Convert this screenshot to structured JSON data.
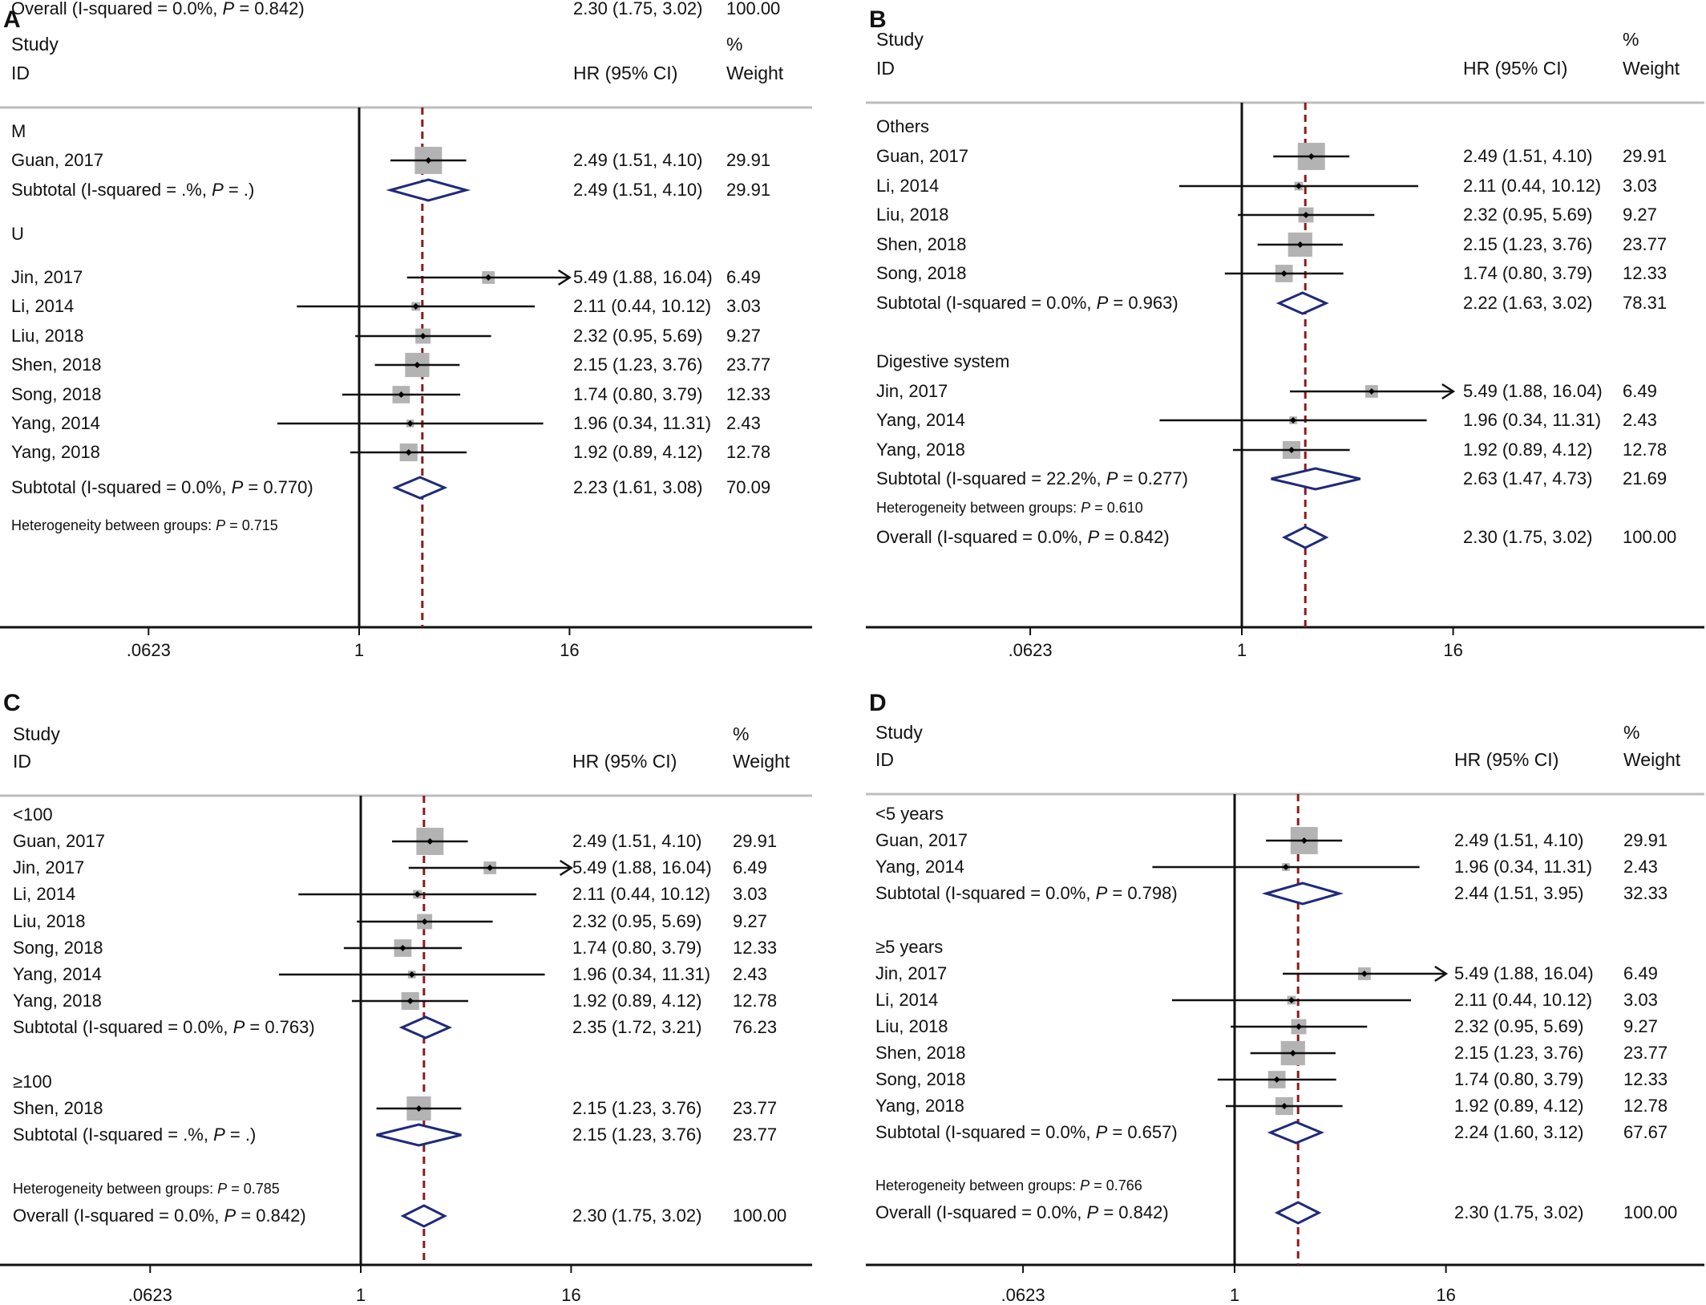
{
  "chart_data": [
    {
      "type": "forest",
      "panel_label": "A",
      "header": {
        "study": "Study",
        "id": "ID",
        "hr": "HR (95% CI)",
        "pct": "%",
        "weight": "Weight"
      },
      "x_scale": "log",
      "ticks": [
        {
          "value": 0.0623,
          "label": ".0623"
        },
        {
          "value": 1,
          "label": "1"
        },
        {
          "value": 16,
          "label": "16"
        }
      ],
      "xlim": [
        0.0623,
        16
      ],
      "overall_line": 2.3,
      "rows": [
        {
          "kind": "group",
          "label": "M"
        },
        {
          "kind": "study",
          "label": "Guan, 2017",
          "hr": 2.49,
          "lo": 1.51,
          "hi": 4.1,
          "ci": "2.49 (1.51, 4.10)",
          "weight": "29.91"
        },
        {
          "kind": "subtotal",
          "label": "Subtotal  (I-squared = .%, ",
          "p_label": "P",
          "p_value": " = .)",
          "hr": 2.49,
          "lo": 1.51,
          "hi": 4.1,
          "ci": "2.49 (1.51, 4.10)",
          "weight": "29.91"
        },
        {
          "kind": "group",
          "label": "U"
        },
        {
          "kind": "study",
          "label": "Jin, 2017",
          "hr": 5.49,
          "lo": 1.88,
          "hi": 16.04,
          "arrow": true,
          "ci": "5.49 (1.88, 16.04)",
          "weight": "6.49"
        },
        {
          "kind": "study",
          "label": "Li, 2014",
          "hr": 2.11,
          "lo": 0.44,
          "hi": 10.12,
          "ci": "2.11 (0.44, 10.12)",
          "weight": "3.03"
        },
        {
          "kind": "study",
          "label": "Liu, 2018",
          "hr": 2.32,
          "lo": 0.95,
          "hi": 5.69,
          "ci": "2.32 (0.95, 5.69)",
          "weight": "9.27"
        },
        {
          "kind": "study",
          "label": "Shen, 2018",
          "hr": 2.15,
          "lo": 1.23,
          "hi": 3.76,
          "ci": "2.15 (1.23, 3.76)",
          "weight": "23.77"
        },
        {
          "kind": "study",
          "label": "Song, 2018",
          "hr": 1.74,
          "lo": 0.8,
          "hi": 3.79,
          "ci": "1.74 (0.80, 3.79)",
          "weight": "12.33"
        },
        {
          "kind": "study",
          "label": "Yang, 2014",
          "hr": 1.96,
          "lo": 0.34,
          "hi": 11.31,
          "ci": "1.96 (0.34, 11.31)",
          "weight": "2.43"
        },
        {
          "kind": "study",
          "label": "Yang, 2018",
          "hr": 1.92,
          "lo": 0.89,
          "hi": 4.12,
          "ci": "1.92 (0.89, 4.12)",
          "weight": "12.78"
        },
        {
          "kind": "subtotal",
          "label": "Subtotal  (I-squared = 0.0%, ",
          "p_label": "P",
          "p_value": " = 0.770)",
          "hr": 2.23,
          "lo": 1.61,
          "hi": 3.08,
          "ci": "2.23 (1.61, 3.08)",
          "weight": "70.09"
        },
        {
          "kind": "het",
          "label": "Heterogeneity between groups: ",
          "p_label": "P",
          "p_value": " = 0.715"
        },
        {
          "kind": "overall",
          "label": "Overall  (I-squared = 0.0%, ",
          "p_label": "P",
          "p_value": " = 0.842)",
          "hr": 2.3,
          "lo": 1.75,
          "hi": 3.02,
          "ci": "2.30 (1.75, 3.02)",
          "weight": "100.00"
        }
      ]
    },
    {
      "type": "forest",
      "panel_label": "B",
      "header": {
        "study": "Study",
        "id": "ID",
        "hr": "HR (95% CI)",
        "pct": "%",
        "weight": "Weight"
      },
      "x_scale": "log",
      "ticks": [
        {
          "value": 0.0623,
          "label": ".0623"
        },
        {
          "value": 1,
          "label": "1"
        },
        {
          "value": 16,
          "label": "16"
        }
      ],
      "xlim": [
        0.0623,
        16
      ],
      "overall_line": 2.3,
      "rows": [
        {
          "kind": "group",
          "label": "Others"
        },
        {
          "kind": "study",
          "label": "Guan, 2017",
          "hr": 2.49,
          "lo": 1.51,
          "hi": 4.1,
          "ci": "2.49 (1.51, 4.10)",
          "weight": "29.91"
        },
        {
          "kind": "study",
          "label": "Li, 2014",
          "hr": 2.11,
          "lo": 0.44,
          "hi": 10.12,
          "ci": "2.11 (0.44, 10.12)",
          "weight": "3.03"
        },
        {
          "kind": "study",
          "label": "Liu, 2018",
          "hr": 2.32,
          "lo": 0.95,
          "hi": 5.69,
          "ci": "2.32 (0.95, 5.69)",
          "weight": "9.27"
        },
        {
          "kind": "study",
          "label": "Shen, 2018",
          "hr": 2.15,
          "lo": 1.23,
          "hi": 3.76,
          "ci": "2.15 (1.23, 3.76)",
          "weight": "23.77"
        },
        {
          "kind": "study",
          "label": "Song, 2018",
          "hr": 1.74,
          "lo": 0.8,
          "hi": 3.79,
          "ci": "1.74 (0.80, 3.79)",
          "weight": "12.33"
        },
        {
          "kind": "subtotal",
          "label": "Subtotal  (I-squared = 0.0%, ",
          "p_label": "P",
          "p_value": " = 0.963)",
          "hr": 2.22,
          "lo": 1.63,
          "hi": 3.02,
          "ci": "2.22 (1.63, 3.02)",
          "weight": "78.31"
        },
        {
          "kind": "group",
          "label": "Digestive system"
        },
        {
          "kind": "study",
          "label": "Jin, 2017",
          "hr": 5.49,
          "lo": 1.88,
          "hi": 16.04,
          "arrow": true,
          "ci": "5.49 (1.88, 16.04)",
          "weight": "6.49"
        },
        {
          "kind": "study",
          "label": "Yang, 2014",
          "hr": 1.96,
          "lo": 0.34,
          "hi": 11.31,
          "ci": "1.96 (0.34, 11.31)",
          "weight": "2.43"
        },
        {
          "kind": "study",
          "label": "Yang, 2018",
          "hr": 1.92,
          "lo": 0.89,
          "hi": 4.12,
          "ci": "1.92 (0.89, 4.12)",
          "weight": "12.78"
        },
        {
          "kind": "subtotal",
          "label": "Subtotal  (I-squared = 22.2%, ",
          "p_label": "P",
          "p_value": " = 0.277)",
          "hr": 2.63,
          "lo": 1.47,
          "hi": 4.73,
          "ci": "2.63 (1.47, 4.73)",
          "weight": "21.69"
        },
        {
          "kind": "het",
          "label": "Heterogeneity between groups: ",
          "p_label": "P",
          "p_value": " = 0.610"
        },
        {
          "kind": "overall",
          "label": "Overall  (I-squared = 0.0%, ",
          "p_label": "P",
          "p_value": " = 0.842)",
          "hr": 2.3,
          "lo": 1.75,
          "hi": 3.02,
          "ci": "2.30 (1.75, 3.02)",
          "weight": "100.00"
        }
      ]
    },
    {
      "type": "forest",
      "panel_label": "C",
      "header": {
        "study": "Study",
        "id": "ID",
        "hr": "HR (95% CI)",
        "pct": "%",
        "weight": "Weight"
      },
      "x_scale": "log",
      "ticks": [
        {
          "value": 0.0623,
          "label": ".0623"
        },
        {
          "value": 1,
          "label": "1"
        },
        {
          "value": 16,
          "label": "16"
        }
      ],
      "xlim": [
        0.0623,
        16
      ],
      "overall_line": 2.3,
      "rows": [
        {
          "kind": "group",
          "label": "<100"
        },
        {
          "kind": "study",
          "label": "Guan, 2017",
          "hr": 2.49,
          "lo": 1.51,
          "hi": 4.1,
          "ci": "2.49 (1.51, 4.10)",
          "weight": "29.91"
        },
        {
          "kind": "study",
          "label": "Jin, 2017",
          "hr": 5.49,
          "lo": 1.88,
          "hi": 16.04,
          "arrow": true,
          "ci": "5.49 (1.88, 16.04)",
          "weight": "6.49"
        },
        {
          "kind": "study",
          "label": "Li, 2014",
          "hr": 2.11,
          "lo": 0.44,
          "hi": 10.12,
          "ci": "2.11 (0.44, 10.12)",
          "weight": "3.03"
        },
        {
          "kind": "study",
          "label": "Liu, 2018",
          "hr": 2.32,
          "lo": 0.95,
          "hi": 5.69,
          "ci": "2.32 (0.95, 5.69)",
          "weight": "9.27"
        },
        {
          "kind": "study",
          "label": "Song, 2018",
          "hr": 1.74,
          "lo": 0.8,
          "hi": 3.79,
          "ci": "1.74 (0.80, 3.79)",
          "weight": "12.33"
        },
        {
          "kind": "study",
          "label": "Yang, 2014",
          "hr": 1.96,
          "lo": 0.34,
          "hi": 11.31,
          "ci": "1.96 (0.34, 11.31)",
          "weight": "2.43"
        },
        {
          "kind": "study",
          "label": "Yang, 2018",
          "hr": 1.92,
          "lo": 0.89,
          "hi": 4.12,
          "ci": "1.92 (0.89, 4.12)",
          "weight": "12.78"
        },
        {
          "kind": "subtotal",
          "label": "Subtotal  (I-squared = 0.0%, ",
          "p_label": "P",
          "p_value": " = 0.763)",
          "hr": 2.35,
          "lo": 1.72,
          "hi": 3.21,
          "ci": "2.35 (1.72, 3.21)",
          "weight": "76.23"
        },
        {
          "kind": "group",
          "label": "≥100"
        },
        {
          "kind": "study",
          "label": "Shen, 2018",
          "hr": 2.15,
          "lo": 1.23,
          "hi": 3.76,
          "ci": "2.15 (1.23, 3.76)",
          "weight": "23.77"
        },
        {
          "kind": "subtotal",
          "label": "Subtotal  (I-squared = .%, ",
          "p_label": "P",
          "p_value": " = .)",
          "hr": 2.15,
          "lo": 1.23,
          "hi": 3.76,
          "ci": "2.15 (1.23, 3.76)",
          "weight": "23.77"
        },
        {
          "kind": "het",
          "label": "Heterogeneity between groups: ",
          "p_label": "P",
          "p_value": " = 0.785"
        },
        {
          "kind": "overall",
          "label": "Overall  (I-squared = 0.0%, ",
          "p_label": "P",
          "p_value": " = 0.842)",
          "hr": 2.3,
          "lo": 1.75,
          "hi": 3.02,
          "ci": "2.30 (1.75, 3.02)",
          "weight": "100.00"
        }
      ]
    },
    {
      "type": "forest",
      "panel_label": "D",
      "header": {
        "study": "Study",
        "id": "ID",
        "hr": "HR (95% CI)",
        "pct": "%",
        "weight": "Weight"
      },
      "x_scale": "log",
      "ticks": [
        {
          "value": 0.0623,
          "label": ".0623"
        },
        {
          "value": 1,
          "label": "1"
        },
        {
          "value": 16,
          "label": "16"
        }
      ],
      "xlim": [
        0.0623,
        16
      ],
      "overall_line": 2.3,
      "rows": [
        {
          "kind": "group",
          "label": "<5 years"
        },
        {
          "kind": "study",
          "label": "Guan, 2017",
          "hr": 2.49,
          "lo": 1.51,
          "hi": 4.1,
          "ci": "2.49 (1.51, 4.10)",
          "weight": "29.91"
        },
        {
          "kind": "study",
          "label": "Yang, 2014",
          "hr": 1.96,
          "lo": 0.34,
          "hi": 11.31,
          "ci": "1.96 (0.34, 11.31)",
          "weight": "2.43"
        },
        {
          "kind": "subtotal",
          "label": "Subtotal  (I-squared = 0.0%, ",
          "p_label": "P",
          "p_value": " = 0.798)",
          "hr": 2.44,
          "lo": 1.51,
          "hi": 3.95,
          "ci": "2.44 (1.51, 3.95)",
          "weight": "32.33"
        },
        {
          "kind": "group",
          "label": "≥5 years"
        },
        {
          "kind": "study",
          "label": "Jin, 2017",
          "hr": 5.49,
          "lo": 1.88,
          "hi": 16.04,
          "arrow": true,
          "ci": "5.49 (1.88, 16.04)",
          "weight": "6.49"
        },
        {
          "kind": "study",
          "label": "Li, 2014",
          "hr": 2.11,
          "lo": 0.44,
          "hi": 10.12,
          "ci": "2.11 (0.44, 10.12)",
          "weight": "3.03"
        },
        {
          "kind": "study",
          "label": "Liu, 2018",
          "hr": 2.32,
          "lo": 0.95,
          "hi": 5.69,
          "ci": "2.32 (0.95, 5.69)",
          "weight": "9.27"
        },
        {
          "kind": "study",
          "label": "Shen, 2018",
          "hr": 2.15,
          "lo": 1.23,
          "hi": 3.76,
          "ci": "2.15 (1.23, 3.76)",
          "weight": "23.77"
        },
        {
          "kind": "study",
          "label": "Song, 2018",
          "hr": 1.74,
          "lo": 0.8,
          "hi": 3.79,
          "ci": "1.74 (0.80, 3.79)",
          "weight": "12.33"
        },
        {
          "kind": "study",
          "label": "Yang, 2018",
          "hr": 1.92,
          "lo": 0.89,
          "hi": 4.12,
          "ci": "1.92 (0.89, 4.12)",
          "weight": "12.78"
        },
        {
          "kind": "subtotal",
          "label": "Subtotal  (I-squared = 0.0%, ",
          "p_label": "P",
          "p_value": " = 0.657)",
          "hr": 2.24,
          "lo": 1.6,
          "hi": 3.12,
          "ci": "2.24 (1.60, 3.12)",
          "weight": "67.67"
        },
        {
          "kind": "het",
          "label": "Heterogeneity between groups: ",
          "p_label": "P",
          "p_value": " = 0.766"
        },
        {
          "kind": "overall",
          "label": "Overall  (I-squared = 0.0%, ",
          "p_label": "P",
          "p_value": " = 0.842)",
          "hr": 2.3,
          "lo": 1.75,
          "hi": 3.02,
          "ci": "2.30 (1.75, 3.02)",
          "weight": "100.00"
        }
      ]
    }
  ],
  "colors": {
    "diamond": "#1f2a7a",
    "ref_line": "#8b1a1a",
    "weight_box": "#b3b3b3",
    "axis": "#111111",
    "separator": "#bdbdbd"
  }
}
